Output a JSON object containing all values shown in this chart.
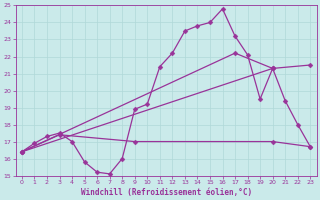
{
  "xlabel": "Windchill (Refroidissement éolien,°C)",
  "xlim": [
    -0.5,
    23.5
  ],
  "ylim": [
    15,
    25
  ],
  "xticks": [
    0,
    1,
    2,
    3,
    4,
    5,
    6,
    7,
    8,
    9,
    10,
    11,
    12,
    13,
    14,
    15,
    16,
    17,
    18,
    19,
    20,
    21,
    22,
    23
  ],
  "yticks": [
    15,
    16,
    17,
    18,
    19,
    20,
    21,
    22,
    23,
    24,
    25
  ],
  "bg_color": "#caeaea",
  "grid_color": "#b0d8d8",
  "line_color": "#993399",
  "line1_x": [
    0,
    1,
    2,
    3,
    4,
    5,
    6,
    7,
    8,
    9,
    10,
    11,
    12,
    13,
    14,
    15,
    16,
    17,
    18,
    19,
    20,
    21,
    22,
    23
  ],
  "line1_y": [
    16.4,
    16.9,
    17.3,
    17.5,
    17.0,
    15.8,
    15.2,
    15.1,
    16.0,
    18.9,
    19.2,
    21.4,
    22.2,
    23.5,
    23.8,
    24.0,
    24.8,
    23.2,
    22.1,
    19.5,
    21.3,
    19.4,
    18.0,
    16.7
  ],
  "line2_x": [
    0,
    3,
    9,
    20,
    23
  ],
  "line2_y": [
    16.4,
    17.4,
    17.0,
    17.0,
    16.7
  ],
  "line3_x": [
    0,
    20,
    23
  ],
  "line3_y": [
    16.4,
    21.3,
    21.5
  ],
  "line4_x": [
    0,
    17,
    20
  ],
  "line4_y": [
    16.4,
    22.2,
    21.3
  ],
  "markersize": 2.5,
  "linewidth": 0.9
}
